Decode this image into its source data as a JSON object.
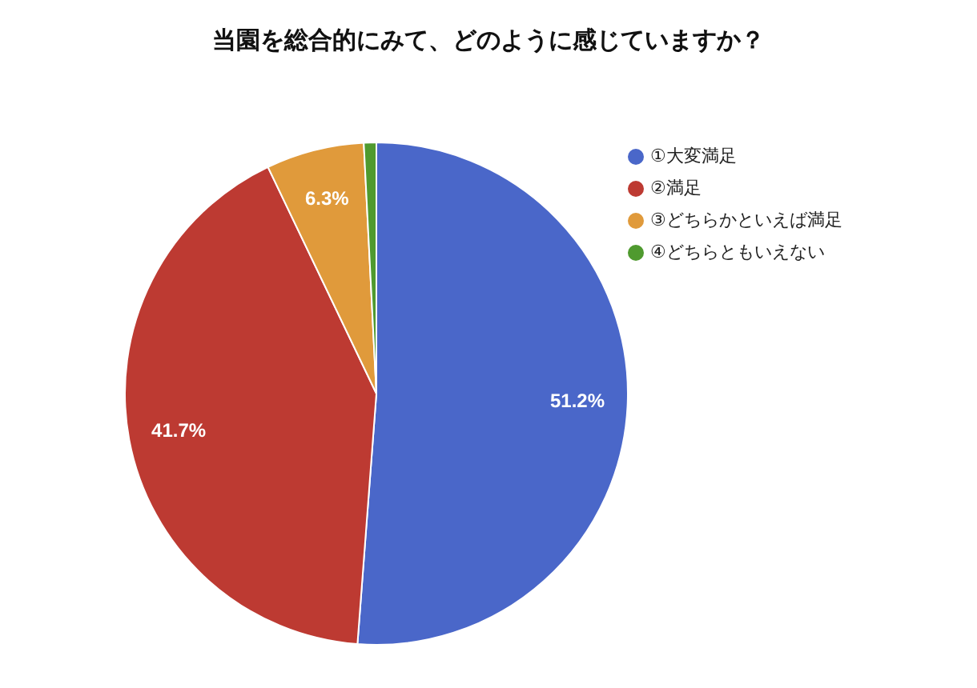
{
  "chart_data": {
    "type": "pie",
    "title": "当園を総合的にみて、どのように感じていますか？",
    "categories": [
      "①大変満足",
      "②満足",
      "③どちらかといえば満足",
      "④どちらともいえない"
    ],
    "values": [
      51.2,
      41.7,
      6.3,
      0.8
    ],
    "colors": [
      "#4a67c9",
      "#bd3a32",
      "#e09a3b",
      "#4f9a2f"
    ],
    "value_labels": [
      "51.2%",
      "41.7%",
      "6.3%",
      null
    ],
    "legend": "right"
  }
}
